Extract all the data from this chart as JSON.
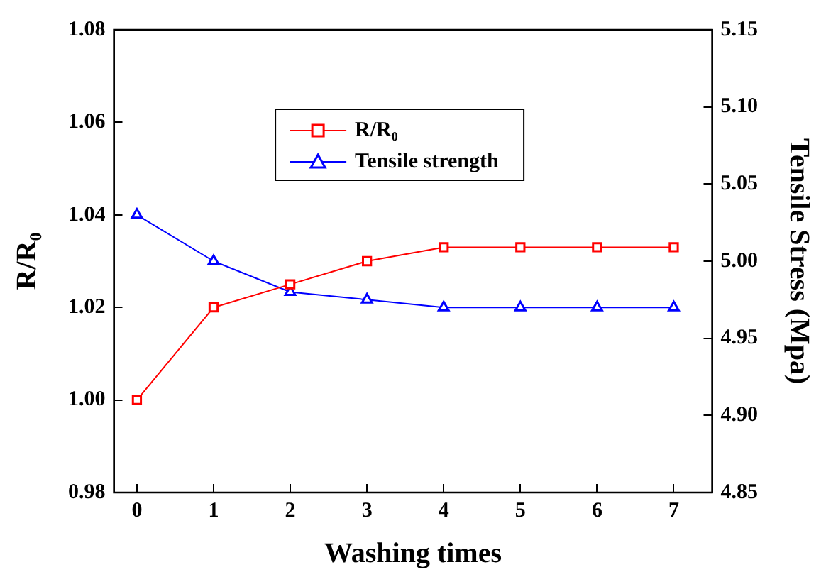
{
  "chart_data": {
    "type": "line",
    "xlabel": "Washing times",
    "ylabel": "R/R₀",
    "y2label": "Tensile Stress (Mpa)",
    "x": [
      0,
      1,
      2,
      3,
      4,
      5,
      6,
      7
    ],
    "xlim": [
      -0.3,
      7.5
    ],
    "xticks": [
      0,
      1,
      2,
      3,
      4,
      5,
      6,
      7
    ],
    "ylim": [
      0.98,
      1.08
    ],
    "yticks": [
      0.98,
      {
        "value": 1,
        "label": "1.00"
      },
      1.02,
      1.04,
      1.06,
      1.08
    ],
    "y2lim": [
      4.85,
      5.15
    ],
    "y2ticks": [
      4.85,
      {
        "value": 4.9,
        "label": "4.90"
      },
      4.95,
      {
        "value": 5,
        "label": "5.00"
      },
      5.05,
      {
        "value": 5.1,
        "label": "5.10"
      },
      5.15
    ],
    "series": [
      {
        "name": "R/R₀",
        "color": "#ff0000",
        "marker": "square",
        "values": [
          1.0,
          1.02,
          1.025,
          1.03,
          1.033,
          1.033,
          1.033,
          1.033
        ]
      },
      {
        "name": "Tensile strength",
        "color": "#0000ff",
        "marker": "triangle",
        "axis": "y2",
        "values": [
          5.03,
          5.0,
          4.98,
          4.975,
          4.97,
          4.97,
          4.97,
          4.97
        ]
      }
    ],
    "legend": "top",
    "grid": false,
    "line_style": "solid"
  }
}
